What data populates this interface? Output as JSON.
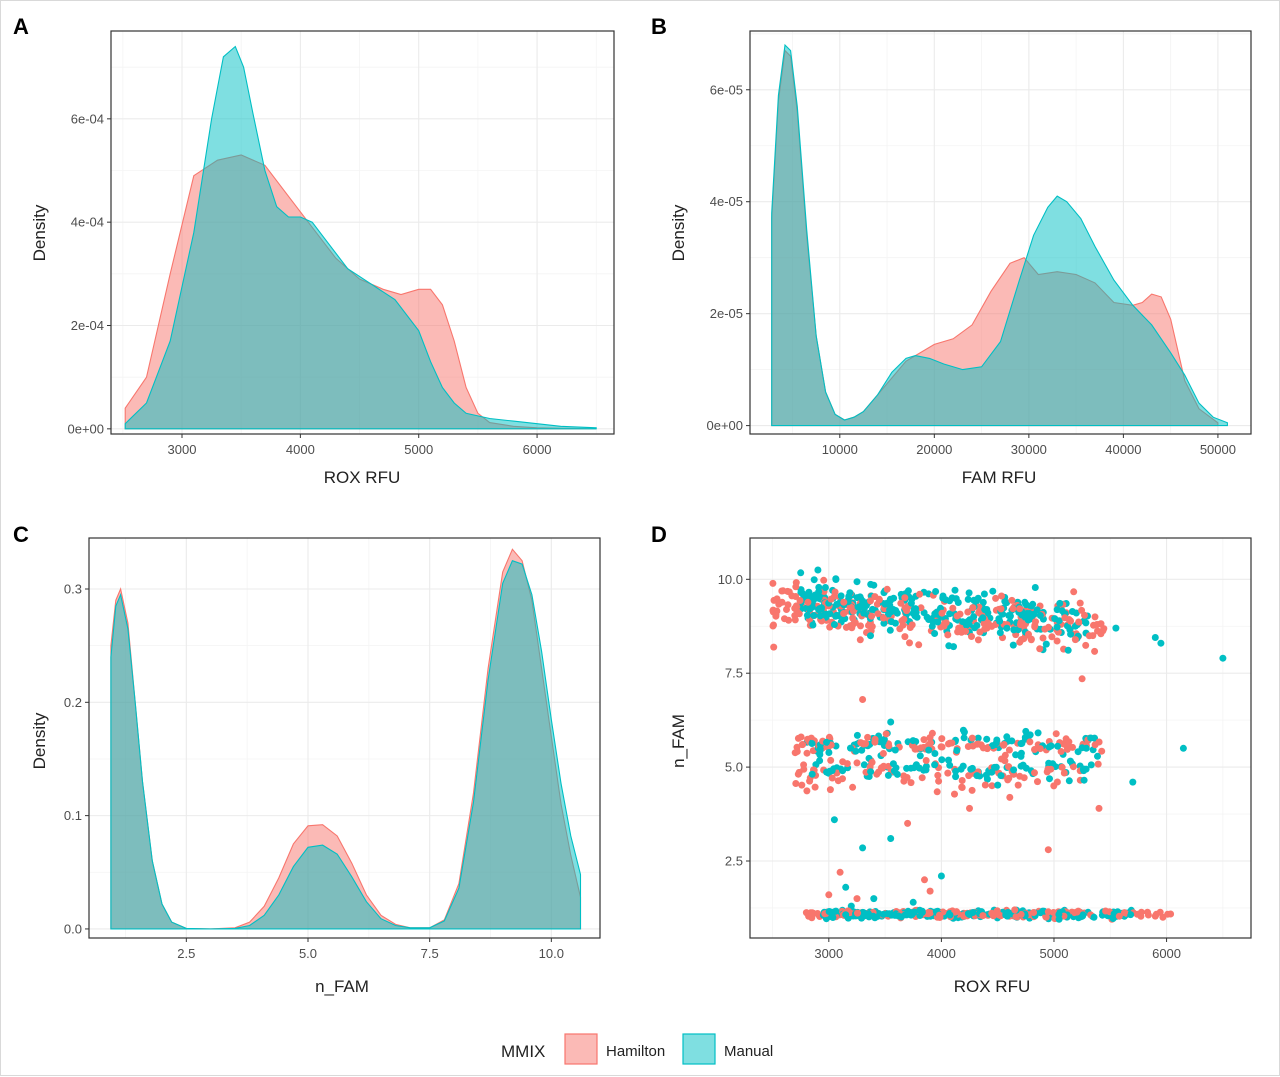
{
  "legend": {
    "title": "MMIX",
    "items": [
      {
        "label": "Hamilton",
        "fill": "#F8766D"
      },
      {
        "label": "Manual",
        "fill": "#00BFC4"
      }
    ]
  },
  "colors": {
    "hamilton": "#F8766D",
    "manual": "#00BFC4",
    "overlap_fill_opacity": 0.5
  },
  "chart_data": [
    {
      "panel": "A",
      "type": "area",
      "xlabel": "ROX RFU",
      "ylabel": "Density",
      "xlim": [
        2400,
        6650
      ],
      "ylim": [
        -1e-05,
        0.00077
      ],
      "xticks": [
        3000,
        4000,
        5000,
        6000
      ],
      "xtick_labels": [
        "3000",
        "4000",
        "5000",
        "6000"
      ],
      "yticks": [
        0,
        0.0002,
        0.0004,
        0.0006
      ],
      "ytick_labels": [
        "0e+00",
        "2e-04",
        "4e-04",
        "6e-04"
      ],
      "grid": true,
      "series": [
        {
          "name": "Hamilton",
          "x": [
            2520,
            2700,
            2900,
            3100,
            3300,
            3500,
            3700,
            3900,
            4100,
            4300,
            4500,
            4700,
            4850,
            5000,
            5100,
            5200,
            5300,
            5400,
            5500,
            5600,
            5800,
            6000,
            6200,
            6500
          ],
          "y": [
            4e-05,
            0.0001,
            0.0003,
            0.00049,
            0.00052,
            0.00053,
            0.00051,
            0.00045,
            0.00039,
            0.00033,
            0.00029,
            0.00027,
            0.00026,
            0.00027,
            0.00027,
            0.00024,
            0.00017,
            8e-05,
            3e-05,
            1.2e-05,
            5e-06,
            2e-06,
            1e-06,
            0.0
          ]
        },
        {
          "name": "Manual",
          "x": [
            2520,
            2700,
            2900,
            3100,
            3250,
            3350,
            3450,
            3520,
            3600,
            3700,
            3800,
            3900,
            4000,
            4100,
            4200,
            4400,
            4600,
            4800,
            5000,
            5100,
            5200,
            5300,
            5400,
            5500,
            5600,
            5800,
            6000,
            6200,
            6500
          ],
          "y": [
            1e-05,
            5e-05,
            0.00017,
            0.00038,
            0.0006,
            0.00072,
            0.00074,
            0.0007,
            0.00061,
            0.0005,
            0.00043,
            0.00041,
            0.00041,
            0.0004,
            0.00037,
            0.00031,
            0.00028,
            0.00025,
            0.00019,
            0.00013,
            8e-05,
            5e-05,
            3e-05,
            2.5e-05,
            2e-05,
            1.5e-05,
            1e-05,
            5e-06,
            2e-06
          ]
        }
      ]
    },
    {
      "panel": "B",
      "type": "area",
      "xlabel": "FAM RFU",
      "ylabel": "Density",
      "xlim": [
        500,
        53500
      ],
      "ylim": [
        -1.5e-06,
        7.05e-05
      ],
      "xticks": [
        10000,
        20000,
        30000,
        40000,
        50000
      ],
      "xtick_labels": [
        "10000",
        "20000",
        "30000",
        "40000",
        "50000"
      ],
      "yticks": [
        0,
        2e-05,
        4e-05,
        6e-05
      ],
      "ytick_labels": [
        "0e+00",
        "2e-05",
        "4e-05",
        "6e-05"
      ],
      "grid": true,
      "series": [
        {
          "name": "Hamilton",
          "x": [
            2800,
            3500,
            4200,
            4800,
            5500,
            6500,
            7500,
            8500,
            9500,
            10500,
            11500,
            12500,
            14000,
            15500,
            17000,
            18000,
            20000,
            22000,
            24000,
            26000,
            28000,
            29500,
            31000,
            33000,
            35000,
            37000,
            39000,
            41000,
            42000,
            43000,
            44000,
            45000,
            46500,
            48000,
            50000
          ],
          "y": [
            3.7e-05,
            5.8e-05,
            6.7e-05,
            6.6e-05,
            5.6e-05,
            3.4e-05,
            1.6e-05,
            6e-06,
            2e-06,
            1e-06,
            1.5e-06,
            2.5e-06,
            5.5e-06,
            8.5e-06,
            1.15e-05,
            1.25e-05,
            1.45e-05,
            1.55e-05,
            1.8e-05,
            2.4e-05,
            2.9e-05,
            3e-05,
            2.7e-05,
            2.75e-05,
            2.7e-05,
            2.55e-05,
            2.2e-05,
            2.15e-05,
            2.2e-05,
            2.35e-05,
            2.3e-05,
            1.9e-05,
            8e-06,
            3e-06,
            5e-07
          ]
        },
        {
          "name": "Manual",
          "x": [
            2800,
            3500,
            4200,
            4800,
            5500,
            6500,
            7500,
            8500,
            9500,
            10500,
            11500,
            12500,
            14000,
            15500,
            17000,
            18000,
            19500,
            21000,
            23000,
            25000,
            27000,
            29000,
            30500,
            32000,
            33000,
            34000,
            35500,
            37000,
            39000,
            41000,
            43000,
            45000,
            46500,
            48000,
            49500,
            51000
          ],
          "y": [
            3.8e-05,
            5.9e-05,
            6.8e-05,
            6.7e-05,
            5.7e-05,
            3.5e-05,
            1.6e-05,
            6e-06,
            2e-06,
            1e-06,
            1.5e-06,
            2.5e-06,
            5.5e-06,
            9.5e-06,
            1.2e-05,
            1.25e-05,
            1.2e-05,
            1.1e-05,
            1e-05,
            1.05e-05,
            1.5e-05,
            2.6e-05,
            3.4e-05,
            3.9e-05,
            4.1e-05,
            4e-05,
            3.7e-05,
            3.2e-05,
            2.6e-05,
            2.15e-05,
            1.8e-05,
            1.3e-05,
            9e-06,
            4e-06,
            1.5e-06,
            5e-07
          ]
        }
      ]
    },
    {
      "panel": "C",
      "type": "area",
      "xlabel": "n_FAM",
      "ylabel": "Density",
      "xlim": [
        0.5,
        11.0
      ],
      "ylim": [
        -0.008,
        0.345
      ],
      "xticks": [
        2.5,
        5.0,
        7.5,
        10.0
      ],
      "xtick_labels": [
        "2.5",
        "5.0",
        "7.5",
        "10.0"
      ],
      "yticks": [
        0,
        0.1,
        0.2,
        0.3
      ],
      "ytick_labels": [
        "0.0",
        "0.1",
        "0.2",
        "0.3"
      ],
      "grid": true,
      "series": [
        {
          "name": "Hamilton",
          "x": [
            0.95,
            1.05,
            1.15,
            1.3,
            1.45,
            1.6,
            1.8,
            2.0,
            2.2,
            2.5,
            3.0,
            3.5,
            3.8,
            4.1,
            4.4,
            4.7,
            5.0,
            5.3,
            5.6,
            5.9,
            6.2,
            6.5,
            6.8,
            7.1,
            7.5,
            7.8,
            8.1,
            8.4,
            8.7,
            9.0,
            9.2,
            9.4,
            9.6,
            9.8,
            10.0,
            10.2,
            10.4,
            10.6
          ],
          "y": [
            0.25,
            0.29,
            0.3,
            0.27,
            0.2,
            0.13,
            0.06,
            0.022,
            0.006,
            0.0005,
            0.0,
            0.001,
            0.006,
            0.02,
            0.045,
            0.075,
            0.091,
            0.092,
            0.082,
            0.058,
            0.03,
            0.012,
            0.004,
            0.001,
            0.001,
            0.008,
            0.04,
            0.12,
            0.23,
            0.315,
            0.335,
            0.325,
            0.29,
            0.23,
            0.17,
            0.11,
            0.065,
            0.028
          ]
        },
        {
          "name": "Manual",
          "x": [
            0.95,
            1.05,
            1.15,
            1.3,
            1.45,
            1.6,
            1.8,
            2.0,
            2.2,
            2.5,
            3.0,
            3.5,
            3.8,
            4.1,
            4.4,
            4.7,
            5.0,
            5.3,
            5.6,
            5.9,
            6.2,
            6.5,
            6.8,
            7.1,
            7.5,
            7.8,
            8.1,
            8.4,
            8.7,
            9.0,
            9.2,
            9.4,
            9.6,
            9.8,
            10.0,
            10.2,
            10.4,
            10.6
          ],
          "y": [
            0.24,
            0.285,
            0.295,
            0.265,
            0.2,
            0.13,
            0.06,
            0.022,
            0.006,
            0.0005,
            0.0,
            0.0005,
            0.003,
            0.012,
            0.03,
            0.055,
            0.072,
            0.074,
            0.066,
            0.046,
            0.024,
            0.009,
            0.003,
            0.001,
            0.001,
            0.007,
            0.036,
            0.112,
            0.22,
            0.305,
            0.325,
            0.322,
            0.295,
            0.245,
            0.185,
            0.128,
            0.082,
            0.048
          ]
        }
      ]
    },
    {
      "panel": "D",
      "type": "scatter",
      "xlabel": "ROX RFU",
      "ylabel": "n_FAM",
      "xlim": [
        2300,
        6750
      ],
      "ylim": [
        0.45,
        11.1
      ],
      "xticks": [
        3000,
        4000,
        5000,
        6000
      ],
      "xtick_labels": [
        "3000",
        "4000",
        "5000",
        "6000"
      ],
      "yticks": [
        2.5,
        5.0,
        7.5,
        10.0
      ],
      "ytick_labels": [
        "2.5",
        "5.0",
        "7.5",
        "10.0"
      ],
      "grid": true,
      "clusters": [
        {
          "name": "Hamilton",
          "x_range": [
            2500,
            5450
          ],
          "y_center": 9.25,
          "y_spread": 0.55,
          "count": 260
        },
        {
          "name": "Manual",
          "x_range": [
            2750,
            5300
          ],
          "y_center": 9.35,
          "y_spread": 0.55,
          "count": 300
        },
        {
          "name": "Hamilton",
          "x_range": [
            2700,
            5500
          ],
          "y_center": 5.6,
          "y_spread": 0.12,
          "count": 95
        },
        {
          "name": "Hamilton",
          "x_range": [
            2700,
            5400
          ],
          "y_center": 4.8,
          "y_spread": 0.25,
          "count": 90
        },
        {
          "name": "Manual",
          "x_range": [
            2800,
            5400
          ],
          "y_center": 5.6,
          "y_spread": 0.15,
          "count": 90
        },
        {
          "name": "Manual",
          "x_range": [
            2850,
            5400
          ],
          "y_center": 4.95,
          "y_spread": 0.15,
          "count": 80
        },
        {
          "name": "Hamilton",
          "x_range": [
            2800,
            6050
          ],
          "y_center": 1.08,
          "y_spread": 0.05,
          "count": 180
        },
        {
          "name": "Manual",
          "x_range": [
            2950,
            5700
          ],
          "y_center": 1.08,
          "y_spread": 0.05,
          "count": 230
        }
      ],
      "points": [
        {
          "name": "Manual",
          "x": 6500,
          "y": 7.9
        },
        {
          "name": "Manual",
          "x": 6150,
          "y": 5.5
        },
        {
          "name": "Manual",
          "x": 5950,
          "y": 8.3
        },
        {
          "name": "Manual",
          "x": 5900,
          "y": 8.45
        },
        {
          "name": "Manual",
          "x": 5700,
          "y": 4.6
        },
        {
          "name": "Manual",
          "x": 5550,
          "y": 8.7
        },
        {
          "name": "Hamilton",
          "x": 5250,
          "y": 7.35
        },
        {
          "name": "Hamilton",
          "x": 5400,
          "y": 3.9
        },
        {
          "name": "Hamilton",
          "x": 4950,
          "y": 2.8
        },
        {
          "name": "Hamilton",
          "x": 4250,
          "y": 3.9
        },
        {
          "name": "Hamilton",
          "x": 3300,
          "y": 6.8
        },
        {
          "name": "Manual",
          "x": 3050,
          "y": 3.6
        },
        {
          "name": "Manual",
          "x": 3300,
          "y": 2.85
        },
        {
          "name": "Manual",
          "x": 3550,
          "y": 3.1
        },
        {
          "name": "Hamilton",
          "x": 3700,
          "y": 3.5
        },
        {
          "name": "Manual",
          "x": 4000,
          "y": 2.1
        },
        {
          "name": "Hamilton",
          "x": 3850,
          "y": 2.0
        },
        {
          "name": "Hamilton",
          "x": 3900,
          "y": 1.7
        },
        {
          "name": "Manual",
          "x": 3750,
          "y": 1.4
        },
        {
          "name": "Hamilton",
          "x": 3100,
          "y": 2.2
        },
        {
          "name": "Manual",
          "x": 3150,
          "y": 1.8
        },
        {
          "name": "Hamilton",
          "x": 3250,
          "y": 1.5
        },
        {
          "name": "Manual",
          "x": 3200,
          "y": 1.3
        },
        {
          "name": "Hamilton",
          "x": 3000,
          "y": 1.6
        },
        {
          "name": "Manual",
          "x": 3400,
          "y": 1.5
        },
        {
          "name": "Manual",
          "x": 3550,
          "y": 6.2
        }
      ]
    }
  ]
}
